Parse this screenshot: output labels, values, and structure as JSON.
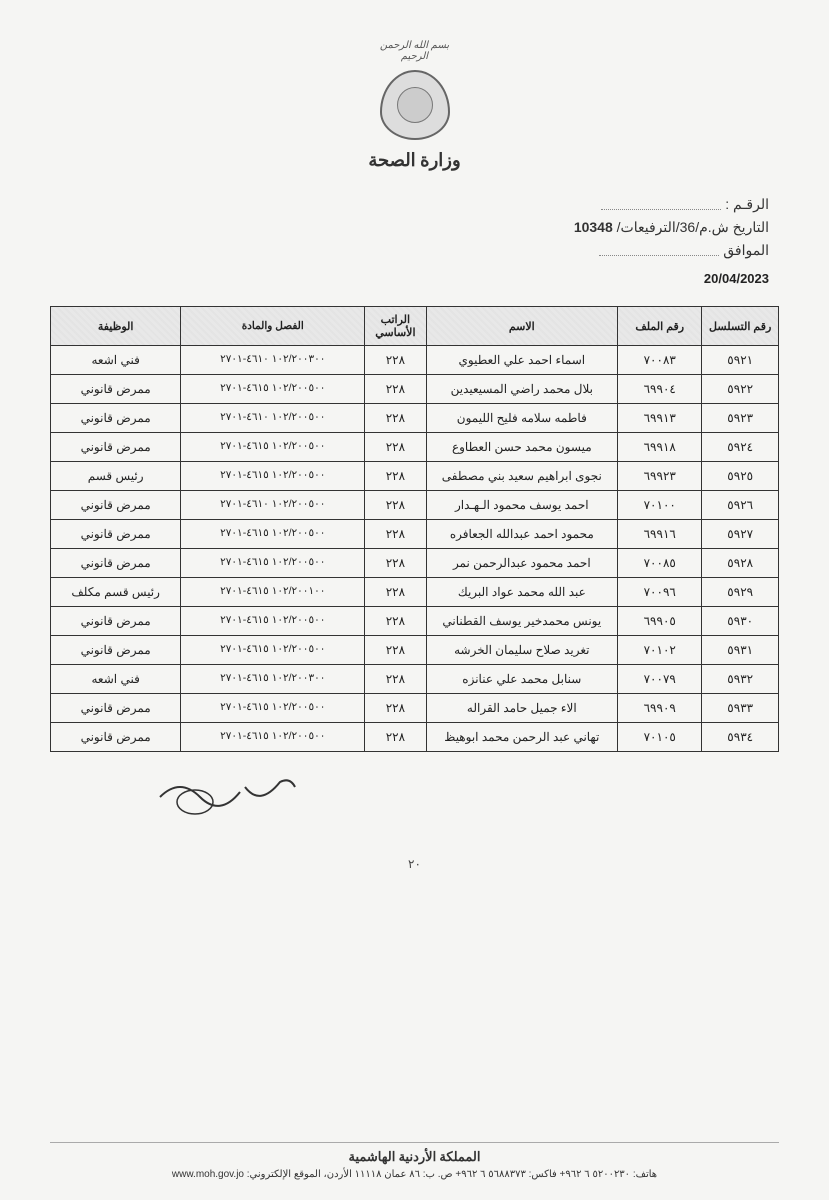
{
  "header": {
    "ministry_title": "وزارة الصحة",
    "crest_top": "بسم الله الرحمن الرحيم"
  },
  "meta": {
    "number_label": "الرقـم :",
    "date_label": "التاريخ ش.م/36/الترفيعات/",
    "date_value": "10348",
    "mowafeq_label": "الموافق",
    "date_en": "20/04/2023"
  },
  "table": {
    "headers": {
      "serial": "رقم التسلسل",
      "file": "رقم الملف",
      "name": "الاسم",
      "salary": "الراتب الأساسي",
      "code": "الفصل والمادة",
      "job": "الوظيفة"
    },
    "rows": [
      {
        "serial": "٥٩٢١",
        "file": "٧٠٠٨٣",
        "name": "اسماء احمد علي العطيوي",
        "salary": "٢٢٨",
        "code": "١٠٢/٢٠٠٣٠٠ ٤٦١٠-٢٧٠١",
        "job": "فني اشعه"
      },
      {
        "serial": "٥٩٢٢",
        "file": "٦٩٩٠٤",
        "name": "بلال محمد راضي المسيعيدين",
        "salary": "٢٢٨",
        "code": "١٠٢/٢٠٠٥٠٠ ٤٦١٥-٢٧٠١",
        "job": "ممرض قانوني"
      },
      {
        "serial": "٥٩٢٣",
        "file": "٦٩٩١٣",
        "name": "فاطمه سلامه فليح الليمون",
        "salary": "٢٢٨",
        "code": "١٠٢/٢٠٠٥٠٠ ٤٦١٠-٢٧٠١",
        "job": "ممرض قانوني"
      },
      {
        "serial": "٥٩٢٤",
        "file": "٦٩٩١٨",
        "name": "ميسون محمد حسن العطاوع",
        "salary": "٢٢٨",
        "code": "١٠٢/٢٠٠٥٠٠ ٤٦١٥-٢٧٠١",
        "job": "ممرض قانوني"
      },
      {
        "serial": "٥٩٢٥",
        "file": "٦٩٩٢٣",
        "name": "نجوى ابراهيم سعيد بني مصطفى",
        "salary": "٢٢٨",
        "code": "١٠٢/٢٠٠٥٠٠ ٤٦١٥-٢٧٠١",
        "job": "رئيس قسم"
      },
      {
        "serial": "٥٩٢٦",
        "file": "٧٠١٠٠",
        "name": "احمد يوسف محمود الـهـدار",
        "salary": "٢٢٨",
        "code": "١٠٢/٢٠٠٥٠٠ ٤٦١٠-٢٧٠١",
        "job": "ممرض قانوني"
      },
      {
        "serial": "٥٩٢٧",
        "file": "٦٩٩١٦",
        "name": "محمود احمد عبدالله الجعافره",
        "salary": "٢٢٨",
        "code": "١٠٢/٢٠٠٥٠٠ ٤٦١٥-٢٧٠١",
        "job": "ممرض قانوني"
      },
      {
        "serial": "٥٩٢٨",
        "file": "٧٠٠٨٥",
        "name": "احمد محمود عبدالرحمن نمر",
        "salary": "٢٢٨",
        "code": "١٠٢/٢٠٠٥٠٠ ٤٦١٥-٢٧٠١",
        "job": "ممرض قانوني"
      },
      {
        "serial": "٥٩٢٩",
        "file": "٧٠٠٩٦",
        "name": "عبد الله محمد عواد البريك",
        "salary": "٢٢٨",
        "code": "١٠٢/٢٠٠١٠٠ ٤٦١٥-٢٧٠١",
        "job": "رئيس قسم مكلف"
      },
      {
        "serial": "٥٩٣٠",
        "file": "٦٩٩٠٥",
        "name": "يونس محمدخير يوسف القطناني",
        "salary": "٢٢٨",
        "code": "١٠٢/٢٠٠٥٠٠ ٤٦١٥-٢٧٠١",
        "job": "ممرض قانوني"
      },
      {
        "serial": "٥٩٣١",
        "file": "٧٠١٠٢",
        "name": "تغريد صلاح سليمان الخرشه",
        "salary": "٢٢٨",
        "code": "١٠٢/٢٠٠٥٠٠ ٤٦١٥-٢٧٠١",
        "job": "ممرض قانوني"
      },
      {
        "serial": "٥٩٣٢",
        "file": "٧٠٠٧٩",
        "name": "سنابل محمد علي عنانزه",
        "salary": "٢٢٨",
        "code": "١٠٢/٢٠٠٣٠٠ ٤٦١٥-٢٧٠١",
        "job": "فني اشعه"
      },
      {
        "serial": "٥٩٣٣",
        "file": "٦٩٩٠٩",
        "name": "الاء جميل حامد القراله",
        "salary": "٢٢٨",
        "code": "١٠٢/٢٠٠٥٠٠ ٤٦١٥-٢٧٠١",
        "job": "ممرض قانوني"
      },
      {
        "serial": "٥٩٣٤",
        "file": "٧٠١٠٥",
        "name": "تهاني عبد الرحمن محمد ابوهيظ",
        "salary": "٢٢٨",
        "code": "١٠٢/٢٠٠٥٠٠ ٤٦١٥-٢٧٠١",
        "job": "ممرض قانوني"
      }
    ]
  },
  "page_number": "٢٠",
  "footer": {
    "top": "المملكة الأردنية الهاشمية",
    "bottom": "هاتف: ٥٢٠٠٢٣٠ ٦ ٩٦٢+ فاكس: ٥٦٨٨٣٧٣ ٦ ٩٦٢+ ص. ب: ٨٦ عمان ١١١١٨ الأردن، الموقع الإلكتروني: www.moh.gov.jo"
  }
}
